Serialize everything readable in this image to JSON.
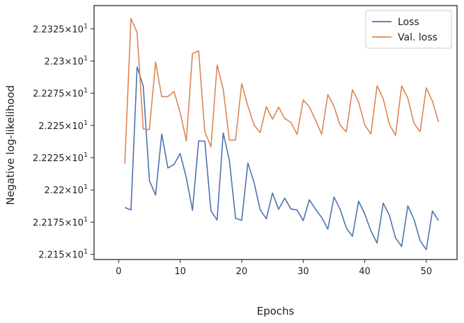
{
  "chart_data": {
    "type": "line",
    "title": "",
    "xlabel": "Epochs",
    "ylabel": "Negative log-likelihood",
    "xlim": [
      -4,
      55
    ],
    "ylim": [
      22.146,
      22.343
    ],
    "x_ticks": [
      0,
      10,
      20,
      30,
      40,
      50
    ],
    "y_ticks": [
      {
        "value": 22.15,
        "label_mantissa": "2.215",
        "label_base": "10",
        "label_exp": "1"
      },
      {
        "value": 22.175,
        "label_mantissa": "2.2175",
        "label_base": "10",
        "label_exp": "1"
      },
      {
        "value": 22.2,
        "label_mantissa": "2.22",
        "label_base": "10",
        "label_exp": "1"
      },
      {
        "value": 22.225,
        "label_mantissa": "2.2225",
        "label_base": "10",
        "label_exp": "1"
      },
      {
        "value": 22.25,
        "label_mantissa": "2.225",
        "label_base": "10",
        "label_exp": "1"
      },
      {
        "value": 22.275,
        "label_mantissa": "2.2275",
        "label_base": "10",
        "label_exp": "1"
      },
      {
        "value": 22.3,
        "label_mantissa": "2.23",
        "label_base": "10",
        "label_exp": "1"
      },
      {
        "value": 22.325,
        "label_mantissa": "2.2325",
        "label_base": "10",
        "label_exp": "1"
      }
    ],
    "grid": false,
    "legend_position": "top-right",
    "x": [
      1,
      2,
      3,
      4,
      5,
      6,
      7,
      8,
      9,
      10,
      11,
      12,
      13,
      14,
      15,
      16,
      17,
      18,
      19,
      20,
      21,
      22,
      23,
      24,
      25,
      26,
      27,
      28,
      29,
      30,
      31,
      32,
      33,
      34,
      35,
      36,
      37,
      38,
      39,
      40,
      41,
      42,
      43,
      44,
      45,
      46,
      47,
      48,
      49,
      50,
      51,
      52
    ],
    "series": [
      {
        "name": "Loss",
        "color": "#4c72b0",
        "values": [
          22.1864,
          22.1844,
          22.2954,
          22.2804,
          22.2072,
          22.196,
          22.2434,
          22.217,
          22.2198,
          22.2282,
          22.2094,
          22.1842,
          22.238,
          22.2378,
          22.1838,
          22.1766,
          22.2442,
          22.2228,
          22.178,
          22.1764,
          22.2208,
          22.206,
          22.1846,
          22.1776,
          22.1976,
          22.185,
          22.1936,
          22.1852,
          22.1844,
          22.1762,
          22.1924,
          22.185,
          22.1786,
          22.1696,
          22.1944,
          22.185,
          22.1706,
          22.164,
          22.1912,
          22.1814,
          22.1682,
          22.1588,
          22.1898,
          22.1804,
          22.1628,
          22.1562,
          22.1876,
          22.1772,
          22.1606,
          22.1536,
          22.1836,
          22.1762
        ]
      },
      {
        "name": "Val. loss",
        "color": "#dd8452",
        "values": [
          22.2204,
          22.333,
          22.322,
          22.2472,
          22.2468,
          22.2992,
          22.2724,
          22.2724,
          22.2764,
          22.26,
          22.238,
          22.3058,
          22.3078,
          22.2452,
          22.2334,
          22.2968,
          22.278,
          22.2386,
          22.2388,
          22.2824,
          22.2652,
          22.2504,
          22.2444,
          22.2646,
          22.2548,
          22.2642,
          22.2554,
          22.2524,
          22.243,
          22.2698,
          22.2644,
          22.2542,
          22.2432,
          22.274,
          22.2648,
          22.2502,
          22.245,
          22.2778,
          22.2682,
          22.2504,
          22.2434,
          22.2808,
          22.2708,
          22.251,
          22.2422,
          22.2808,
          22.2712,
          22.2516,
          22.2452,
          22.2792,
          22.2688,
          22.2528
        ]
      }
    ]
  }
}
